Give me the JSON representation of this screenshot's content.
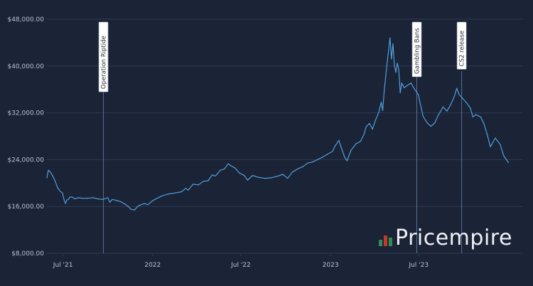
{
  "chart_data": {
    "type": "line",
    "title": "",
    "xlabel": "",
    "ylabel": "",
    "ylim": [
      8000,
      48000
    ],
    "y_ticks": [
      8000,
      16000,
      24000,
      32000,
      40000,
      48000
    ],
    "y_tick_labels": [
      "$8,000.00",
      "$16,000.00",
      "$24,000.00",
      "$32,000.00",
      "$40,000.00",
      "$48,000.00"
    ],
    "x_range": [
      "2021-05-29",
      "2024-01-31"
    ],
    "x_ticks": [
      "2021-07-01",
      "2022-01-01",
      "2022-07-01",
      "2023-01-01",
      "2023-07-01"
    ],
    "x_tick_labels": [
      "Jul '21",
      "2022",
      "Jul '22",
      "2023",
      "Jul '23"
    ],
    "grid": "horizontal",
    "series": [
      {
        "color": "#4fa0dc",
        "points": [
          [
            "2021-05-29",
            20900
          ],
          [
            "2021-06-01",
            22200
          ],
          [
            "2021-06-05",
            21900
          ],
          [
            "2021-06-10",
            21200
          ],
          [
            "2021-06-15",
            20300
          ],
          [
            "2021-06-20",
            19200
          ],
          [
            "2021-06-25",
            18600
          ],
          [
            "2021-06-30",
            18300
          ],
          [
            "2021-07-03",
            17200
          ],
          [
            "2021-07-06",
            16500
          ],
          [
            "2021-07-09",
            17100
          ],
          [
            "2021-07-12",
            17200
          ],
          [
            "2021-07-15",
            17600
          ],
          [
            "2021-07-20",
            17600
          ],
          [
            "2021-07-25",
            17300
          ],
          [
            "2021-08-01",
            17500
          ],
          [
            "2021-08-10",
            17400
          ],
          [
            "2021-08-20",
            17400
          ],
          [
            "2021-09-01",
            17500
          ],
          [
            "2021-09-10",
            17300
          ],
          [
            "2021-09-20",
            17200
          ],
          [
            "2021-10-01",
            17500
          ],
          [
            "2021-10-05",
            16700
          ],
          [
            "2021-10-10",
            17200
          ],
          [
            "2021-10-20",
            17000
          ],
          [
            "2021-10-28",
            16800
          ],
          [
            "2021-11-05",
            16400
          ],
          [
            "2021-11-12",
            16000
          ],
          [
            "2021-11-18",
            15500
          ],
          [
            "2021-11-25",
            15400
          ],
          [
            "2021-12-01",
            16000
          ],
          [
            "2021-12-08",
            16300
          ],
          [
            "2021-12-15",
            16500
          ],
          [
            "2021-12-22",
            16300
          ],
          [
            "2022-01-01",
            17000
          ],
          [
            "2022-01-10",
            17400
          ],
          [
            "2022-01-20",
            17800
          ],
          [
            "2022-02-01",
            18100
          ],
          [
            "2022-02-15",
            18300
          ],
          [
            "2022-03-01",
            18500
          ],
          [
            "2022-03-10",
            19100
          ],
          [
            "2022-03-15",
            18800
          ],
          [
            "2022-03-25",
            19800
          ],
          [
            "2022-04-05",
            19700
          ],
          [
            "2022-04-15",
            20300
          ],
          [
            "2022-04-25",
            20400
          ],
          [
            "2022-05-03",
            21400
          ],
          [
            "2022-05-10",
            21200
          ],
          [
            "2022-05-20",
            22200
          ],
          [
            "2022-05-28",
            22400
          ],
          [
            "2022-06-05",
            23300
          ],
          [
            "2022-06-10",
            23000
          ],
          [
            "2022-06-20",
            22500
          ],
          [
            "2022-06-28",
            21700
          ],
          [
            "2022-07-08",
            21300
          ],
          [
            "2022-07-12",
            20800
          ],
          [
            "2022-07-15",
            20500
          ],
          [
            "2022-07-25",
            21300
          ],
          [
            "2022-08-05",
            21000
          ],
          [
            "2022-08-20",
            20800
          ],
          [
            "2022-09-01",
            20900
          ],
          [
            "2022-09-15",
            21200
          ],
          [
            "2022-09-25",
            21500
          ],
          [
            "2022-10-05",
            20800
          ],
          [
            "2022-10-15",
            21900
          ],
          [
            "2022-10-25",
            22400
          ],
          [
            "2022-11-05",
            22800
          ],
          [
            "2022-11-15",
            23400
          ],
          [
            "2022-11-25",
            23600
          ],
          [
            "2022-12-05",
            24000
          ],
          [
            "2022-12-15",
            24400
          ],
          [
            "2022-12-25",
            24900
          ],
          [
            "2023-01-05",
            25400
          ],
          [
            "2023-01-10",
            26300
          ],
          [
            "2023-01-18",
            27300
          ],
          [
            "2023-01-24",
            25800
          ],
          [
            "2023-01-30",
            24400
          ],
          [
            "2023-02-04",
            23800
          ],
          [
            "2023-02-12",
            25600
          ],
          [
            "2023-02-22",
            26700
          ],
          [
            "2023-03-03",
            27100
          ],
          [
            "2023-03-10",
            28200
          ],
          [
            "2023-03-15",
            29600
          ],
          [
            "2023-03-22",
            30200
          ],
          [
            "2023-03-28",
            29200
          ],
          [
            "2023-04-03",
            30700
          ],
          [
            "2023-04-10",
            32100
          ],
          [
            "2023-04-15",
            33800
          ],
          [
            "2023-04-18",
            32400
          ],
          [
            "2023-04-21",
            35700
          ],
          [
            "2023-04-26",
            39700
          ],
          [
            "2023-04-30",
            42600
          ],
          [
            "2023-05-03",
            44800
          ],
          [
            "2023-05-06",
            41200
          ],
          [
            "2023-05-09",
            43800
          ],
          [
            "2023-05-12",
            40100
          ],
          [
            "2023-05-15",
            38900
          ],
          [
            "2023-05-18",
            40500
          ],
          [
            "2023-05-21",
            39400
          ],
          [
            "2023-05-24",
            35400
          ],
          [
            "2023-05-27",
            37100
          ],
          [
            "2023-06-01",
            36300
          ],
          [
            "2023-06-08",
            36700
          ],
          [
            "2023-06-15",
            37100
          ],
          [
            "2023-06-22",
            36100
          ],
          [
            "2023-06-30",
            35100
          ],
          [
            "2023-07-04",
            33600
          ],
          [
            "2023-07-10",
            31400
          ],
          [
            "2023-07-18",
            30300
          ],
          [
            "2023-07-26",
            29700
          ],
          [
            "2023-08-03",
            30300
          ],
          [
            "2023-08-10",
            31600
          ],
          [
            "2023-08-20",
            33000
          ],
          [
            "2023-08-28",
            32300
          ],
          [
            "2023-09-04",
            33300
          ],
          [
            "2023-09-12",
            34800
          ],
          [
            "2023-09-17",
            36200
          ],
          [
            "2023-09-22",
            35100
          ],
          [
            "2023-09-30",
            34400
          ],
          [
            "2023-10-07",
            33700
          ],
          [
            "2023-10-15",
            32800
          ],
          [
            "2023-10-20",
            31300
          ],
          [
            "2023-10-26",
            31700
          ],
          [
            "2023-11-05",
            31300
          ],
          [
            "2023-11-12",
            30100
          ],
          [
            "2023-11-18",
            28400
          ],
          [
            "2023-11-25",
            26200
          ],
          [
            "2023-12-05",
            27700
          ],
          [
            "2023-12-15",
            26600
          ],
          [
            "2023-12-22",
            24700
          ],
          [
            "2024-01-01",
            23500
          ]
        ]
      }
    ],
    "annotations": [
      {
        "label": "Operation Riptide",
        "x": "2021-09-22"
      },
      {
        "label": "Gambling Bans",
        "x": "2023-06-27"
      },
      {
        "label": "CS2 release",
        "x": "2023-09-27"
      }
    ]
  },
  "branding": {
    "logo_text": "Pricempire",
    "logo_colors": [
      "#2e8b57",
      "#c0392b"
    ]
  }
}
